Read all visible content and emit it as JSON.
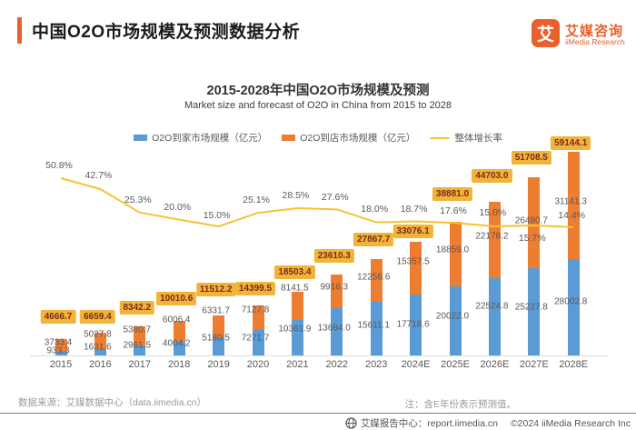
{
  "header": {
    "title": "中国O2O市场规模及预测数据分析",
    "logo": {
      "glyph": "艾",
      "brand_cn": "艾媒咨询",
      "brand_en": "iiMedia Research"
    },
    "accent_color": "#E8612E"
  },
  "chart_data": {
    "type": "bar",
    "stacked": true,
    "title": "2015-2028年中国O2O市场规模及预测",
    "subtitle": "Market size and forecast of O2O in China from 2015 to 2028",
    "legend_position": "top",
    "grid": false,
    "ylim": [
      0,
      62000
    ],
    "categories": [
      "2015",
      "2016",
      "2017",
      "2018",
      "2019",
      "2020",
      "2021",
      "2022",
      "2023",
      "2024E",
      "2025E",
      "2026E",
      "2027E",
      "2028E"
    ],
    "series": [
      {
        "name": "O2O到家市场规模（亿元）",
        "color": "#5B9BD5",
        "values": [
          933.3,
          1631.6,
          2961.5,
          4004.2,
          5180.5,
          7271.7,
          10361.9,
          13694.0,
          15611.1,
          17718.6,
          20022.0,
          22524.8,
          25227.8,
          28002.8
        ]
      },
      {
        "name": "O2O到店市场规模（亿元）",
        "color": "#ED7D31",
        "values": [
          3733.4,
          5027.8,
          5380.7,
          6006.4,
          6331.7,
          7127.8,
          8141.5,
          9916.3,
          12256.6,
          15357.5,
          18859.0,
          22178.2,
          26480.7,
          31141.3
        ]
      }
    ],
    "totals": [
      4666.7,
      6659.4,
      8342.2,
      10010.6,
      11512.2,
      14399.5,
      18503.4,
      23610.3,
      27867.7,
      33076.1,
      38881.0,
      44703.0,
      51708.5,
      59144.1
    ],
    "line": {
      "name": "整体增长率",
      "color": "#F7C331",
      "values_pct": [
        50.8,
        42.7,
        25.3,
        20.0,
        15.0,
        25.1,
        28.5,
        27.6,
        18.0,
        18.7,
        17.6,
        15.0,
        15.7,
        14.4
      ]
    }
  },
  "footer": {
    "source": "数据来源：艾媒数据中心（data.iimedia.cn）",
    "note": "注：含E年份表示预测值。"
  },
  "bottombar": {
    "report_center": "艾媒报告中心：report.iimedia.cn",
    "copyright": "©2024  iiMedia Research Inc"
  }
}
